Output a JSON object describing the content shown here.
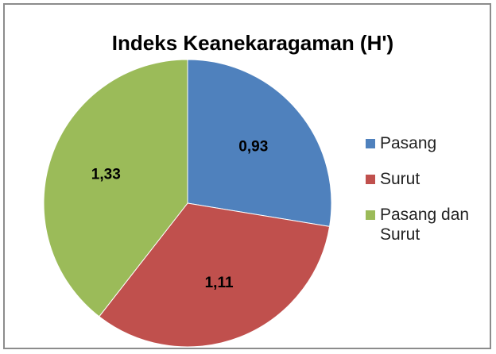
{
  "chart_data": {
    "type": "pie",
    "title": "Indeks Keanekaragaman (H')",
    "categories": [
      "Pasang",
      "Surut",
      "Pasang dan Surut"
    ],
    "values": [
      0.93,
      1.11,
      1.33
    ],
    "value_labels": [
      "0,93",
      "1,11",
      "1,33"
    ],
    "colors": [
      "#4f81bd",
      "#c0504d",
      "#9bbb59"
    ],
    "legend": "right"
  }
}
